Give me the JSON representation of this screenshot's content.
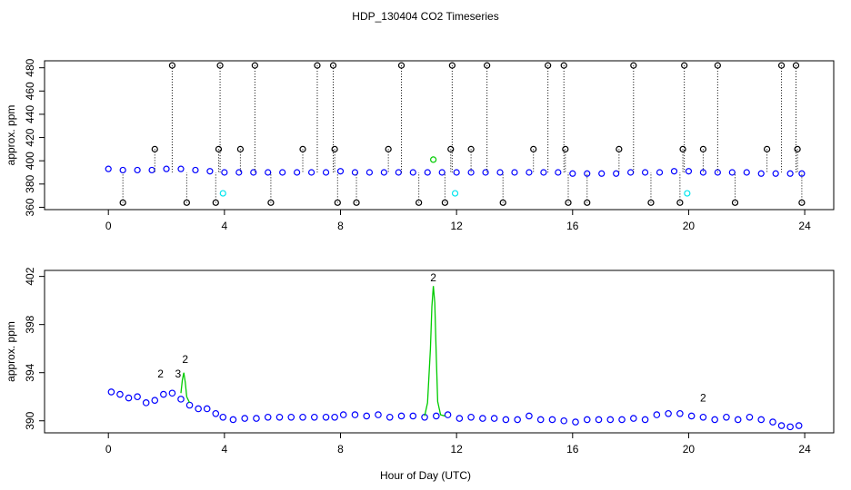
{
  "figure": {
    "title": "HDP_130404  CO2 Timeseries",
    "xlabel": "Hour of Day (UTC)"
  },
  "colors": {
    "series_1": "#0000ff",
    "series_2": "#00cc00",
    "series_3": "#0000aa",
    "flagged": "#000000",
    "cyan_marker": "#00e5ee",
    "frame": "#000000"
  },
  "chart_data": [
    {
      "type": "scatter",
      "title": "",
      "xlabel": "",
      "ylabel": "approx. ppm",
      "xlim": [
        -2.2,
        25
      ],
      "ylim": [
        358,
        486
      ],
      "xticks": [
        0,
        4,
        8,
        12,
        16,
        20,
        24
      ],
      "yticks": [
        360,
        380,
        400,
        420,
        440,
        460,
        480
      ],
      "xtick_labels": [
        "0",
        "4",
        "8",
        "12",
        "16",
        "20",
        "24"
      ],
      "ytick_labels": [
        "360",
        "380",
        "400",
        "420",
        "440",
        "460",
        "480"
      ],
      "grid": false,
      "legend": "none",
      "series": [
        {
          "marker": "o",
          "color": "#0000ff",
          "x": [
            0.0,
            0.5,
            1.0,
            1.5,
            2.0,
            2.5,
            3.0,
            3.5,
            4.0,
            4.5,
            5.0,
            5.5,
            6.0,
            6.5,
            7.0,
            7.5,
            8.0,
            8.5,
            9.0,
            9.5,
            10.0,
            10.5,
            11.0,
            11.5,
            12.0,
            12.5,
            13.0,
            13.5,
            14.0,
            14.5,
            15.0,
            15.5,
            16.0,
            16.5,
            17.0,
            17.5,
            18.0,
            18.5,
            19.0,
            19.5,
            20.0,
            20.5,
            21.0,
            21.5,
            22.0,
            22.5,
            23.0,
            23.5,
            23.9
          ],
          "y": [
            393,
            392,
            392,
            392,
            393,
            393,
            392,
            391,
            390,
            390,
            390,
            390,
            390,
            390,
            390,
            390,
            391,
            390,
            390,
            390,
            390,
            390,
            390,
            390,
            390,
            390,
            390,
            390,
            390,
            390,
            390,
            390,
            389,
            389,
            389,
            389,
            390,
            390,
            390,
            391,
            391,
            390,
            390,
            390,
            390,
            389,
            389,
            389,
            389
          ]
        },
        {
          "marker": "o",
          "color": "#000000",
          "x": [
            0.5,
            1.6,
            2.2,
            2.7,
            3.7,
            3.8,
            3.85,
            4.55,
            5.05,
            5.6,
            6.7,
            7.2,
            7.75,
            7.8,
            7.9,
            8.55,
            9.65,
            10.1,
            10.7,
            11.6,
            11.8,
            11.85,
            12.5,
            13.05,
            13.6,
            14.65,
            15.15,
            15.7,
            15.75,
            15.85,
            16.5,
            17.6,
            18.1,
            18.7,
            19.7,
            19.8,
            19.85,
            20.5,
            21.0,
            21.6,
            22.7,
            23.2,
            23.7,
            23.75,
            23.9
          ],
          "y": [
            364,
            410,
            482,
            364,
            364,
            410,
            482,
            410,
            482,
            364,
            410,
            482,
            482,
            410,
            364,
            364,
            410,
            482,
            364,
            364,
            410,
            482,
            410,
            482,
            364,
            410,
            482,
            482,
            410,
            364,
            364,
            410,
            482,
            364,
            364,
            410,
            482,
            410,
            482,
            364,
            410,
            482,
            482,
            410,
            364
          ]
        },
        {
          "marker": "o",
          "color": "#00e5ee",
          "x": [
            3.95,
            11.95,
            19.95
          ],
          "y": [
            372,
            372,
            372
          ]
        },
        {
          "marker": "o",
          "color": "#00cc00",
          "x": [
            11.2
          ],
          "y": [
            401
          ]
        }
      ]
    },
    {
      "type": "scatter",
      "title": "",
      "xlabel": "Hour of Day (UTC)",
      "ylabel": "approx. ppm",
      "xlim": [
        -2.2,
        25
      ],
      "ylim": [
        389,
        402.5
      ],
      "xticks": [
        0,
        4,
        8,
        12,
        16,
        20,
        24
      ],
      "yticks": [
        390,
        394,
        398,
        402
      ],
      "xtick_labels": [
        "0",
        "4",
        "8",
        "12",
        "16",
        "20",
        "24"
      ],
      "ytick_labels": [
        "390",
        "394",
        "398",
        "402"
      ],
      "grid": false,
      "legend": "none",
      "annotations": [
        {
          "text": "2",
          "x": 1.8,
          "y": 393.6,
          "color": "#00cc00"
        },
        {
          "text": "3",
          "x": 2.4,
          "y": 393.6,
          "color": "#0000aa"
        },
        {
          "text": "2",
          "x": 2.65,
          "y": 394.8,
          "color": "#00cc00"
        },
        {
          "text": "2",
          "x": 11.2,
          "y": 401.6,
          "color": "#00cc00"
        },
        {
          "text": "2",
          "x": 20.5,
          "y": 391.6,
          "color": "#00cc00"
        }
      ],
      "series": [
        {
          "name": "",
          "marker": "o",
          "color": "#0000ff",
          "x": [
            0.1,
            0.4,
            0.7,
            1.0,
            1.3,
            1.6,
            1.9,
            2.2,
            2.5,
            2.8,
            3.1,
            3.4,
            3.7,
            3.95,
            4.3,
            4.7,
            5.1,
            5.5,
            5.9,
            6.3,
            6.7,
            7.1,
            7.5,
            7.8,
            8.1,
            8.5,
            8.9,
            9.3,
            9.7,
            10.1,
            10.5,
            10.9,
            11.3,
            11.7,
            12.1,
            12.5,
            12.9,
            13.3,
            13.7,
            14.1,
            14.5,
            14.9,
            15.3,
            15.7,
            16.1,
            16.5,
            16.9,
            17.3,
            17.7,
            18.1,
            18.5,
            18.9,
            19.3,
            19.7,
            20.1,
            20.5,
            20.9,
            21.3,
            21.7,
            22.1,
            22.5,
            22.9,
            23.2,
            23.5,
            23.8
          ],
          "y": [
            392.4,
            392.2,
            391.9,
            392.0,
            391.5,
            391.7,
            392.2,
            392.3,
            391.8,
            391.3,
            391.0,
            391.0,
            390.6,
            390.3,
            390.1,
            390.2,
            390.2,
            390.3,
            390.3,
            390.3,
            390.3,
            390.3,
            390.3,
            390.3,
            390.5,
            390.5,
            390.4,
            390.5,
            390.3,
            390.4,
            390.4,
            390.3,
            390.4,
            390.5,
            390.2,
            390.3,
            390.2,
            390.2,
            390.1,
            390.1,
            390.4,
            390.1,
            390.1,
            390.0,
            389.9,
            390.1,
            390.1,
            390.1,
            390.1,
            390.2,
            390.1,
            390.5,
            390.6,
            390.6,
            390.4,
            390.3,
            390.1,
            390.3,
            390.1,
            390.3,
            390.1,
            389.9,
            389.6,
            389.5,
            389.6
          ]
        },
        {
          "name": "",
          "marker": "line",
          "color": "#00cc00",
          "x": [
            10.9,
            11.0,
            11.1,
            11.15,
            11.2,
            11.25,
            11.3,
            11.35,
            11.45,
            11.6
          ],
          "y": [
            390.4,
            391.5,
            396.0,
            399.5,
            401.2,
            399.8,
            395.5,
            391.6,
            390.5,
            390.4
          ]
        },
        {
          "name": "",
          "marker": "line",
          "color": "#00cc00",
          "x": [
            2.5,
            2.55,
            2.6,
            2.65,
            2.7,
            2.8
          ],
          "y": [
            392.3,
            393.4,
            394.0,
            393.2,
            392.0,
            391.5
          ]
        }
      ]
    }
  ]
}
